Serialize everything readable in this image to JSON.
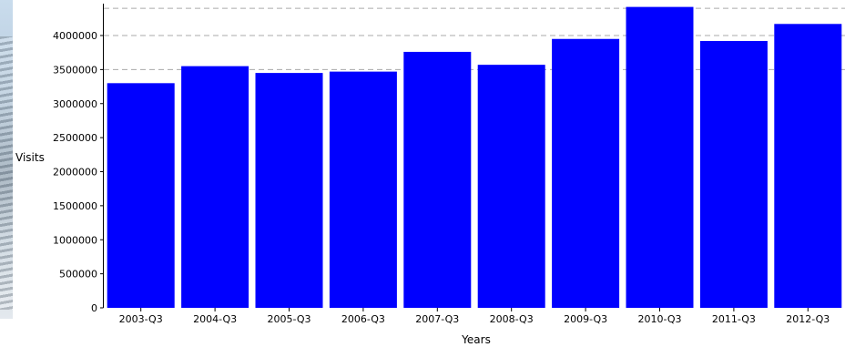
{
  "chart_data": {
    "type": "bar",
    "title": "",
    "xlabel": "Years",
    "ylabel": "Visits",
    "categories": [
      "2003-Q3",
      "2004-Q3",
      "2005-Q3",
      "2006-Q3",
      "2007-Q3",
      "2008-Q3",
      "2009-Q3",
      "2010-Q3",
      "2011-Q3",
      "2012-Q3"
    ],
    "values": [
      3300000,
      3550000,
      3450000,
      3470000,
      3760000,
      3570000,
      3950000,
      4420000,
      3920000,
      4170000
    ],
    "yticks": [
      "0",
      "500000",
      "1000000",
      "1500000",
      "2000000",
      "2500000",
      "3000000",
      "3500000",
      "4000000"
    ],
    "ylim": [
      0,
      4400000
    ],
    "bar_color": "#0000ff",
    "grid": "dashed horizontal",
    "legend": "none"
  }
}
